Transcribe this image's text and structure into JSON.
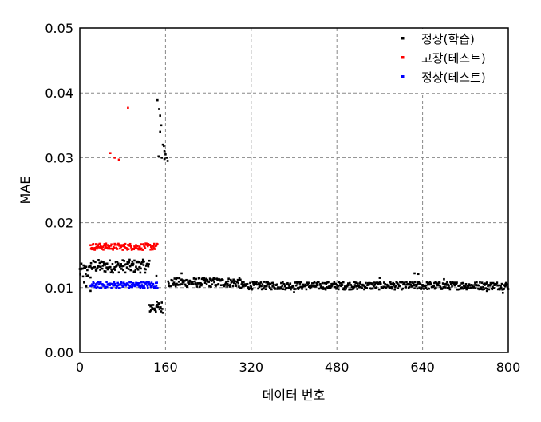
{
  "chart_data": {
    "type": "scatter",
    "title": "",
    "xlabel": "데이터 번호",
    "ylabel": "MAE",
    "xlim": [
      0,
      800
    ],
    "ylim": [
      0,
      0.05
    ],
    "xticks": [
      0,
      160,
      320,
      480,
      640,
      800
    ],
    "xtick_labels": [
      "0",
      "160",
      "320",
      "480",
      "640",
      "800"
    ],
    "yticks": [
      0,
      0.01,
      0.02,
      0.03,
      0.04,
      0.05
    ],
    "ytick_labels": [
      "0.00",
      "0.01",
      "0.02",
      "0.03",
      "0.04",
      "0.05"
    ],
    "grid": true,
    "grid_style": "dashed",
    "legend_position": "top-right",
    "series": [
      {
        "name": "정상(학습)",
        "color": "#000000",
        "segments": [
          {
            "x_start": 0,
            "x_end": 20,
            "y_mean": 0.0125,
            "spread": 0.0012
          },
          {
            "x_start": 20,
            "x_end": 130,
            "y_mean": 0.0133,
            "spread": 0.001
          },
          {
            "x_start": 130,
            "x_end": 155,
            "y_mean": 0.007,
            "spread": 0.0009
          },
          {
            "x_start": 165,
            "x_end": 300,
            "y_mean": 0.0108,
            "spread": 0.0007
          },
          {
            "x_start": 300,
            "x_end": 800,
            "y_mean": 0.0103,
            "spread": 0.0006
          }
        ],
        "points": [
          [
            145,
            0.0389
          ],
          [
            148,
            0.0375
          ],
          [
            150,
            0.0365
          ],
          [
            152,
            0.035
          ],
          [
            150,
            0.034
          ],
          [
            155,
            0.032
          ],
          [
            157,
            0.0318
          ],
          [
            153,
            0.03
          ],
          [
            158,
            0.031
          ],
          [
            160,
            0.0305
          ],
          [
            162,
            0.03
          ],
          [
            164,
            0.0295
          ],
          [
            158,
            0.0298
          ],
          [
            147,
            0.0302
          ],
          [
            8,
            0.0108
          ],
          [
            12,
            0.0102
          ],
          [
            20,
            0.0095
          ],
          [
            143,
            0.0118
          ],
          [
            190,
            0.0122
          ],
          [
            400,
            0.0093
          ],
          [
            625,
            0.0122
          ],
          [
            632,
            0.0121
          ],
          [
            560,
            0.0115
          ],
          [
            680,
            0.0113
          ],
          [
            760,
            0.0095
          ],
          [
            790,
            0.0092
          ]
        ]
      },
      {
        "name": "고장(테스트)",
        "color": "#ff0000",
        "segments": [
          {
            "x_start": 20,
            "x_end": 145,
            "y_mean": 0.0163,
            "spread": 0.0005
          }
        ],
        "points": [
          [
            57,
            0.0307
          ],
          [
            65,
            0.03
          ],
          [
            73,
            0.0297
          ],
          [
            90,
            0.0377
          ]
        ]
      },
      {
        "name": "정상(테스트)",
        "color": "#0000ff",
        "segments": [
          {
            "x_start": 20,
            "x_end": 145,
            "y_mean": 0.0104,
            "spread": 0.0005
          }
        ],
        "points": []
      }
    ]
  }
}
